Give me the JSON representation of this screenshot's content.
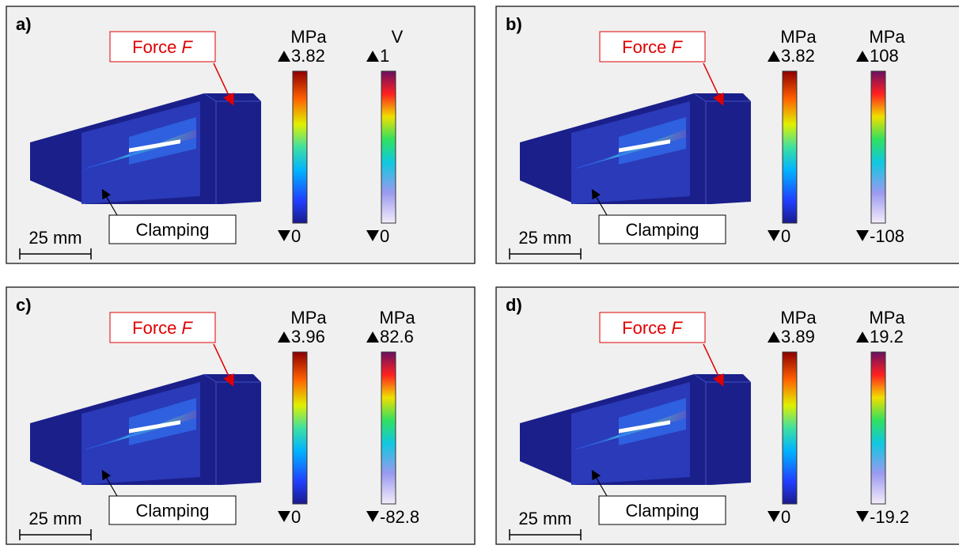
{
  "panels": [
    {
      "label": "a)",
      "force": {
        "text": "Force",
        "symbol": "F"
      },
      "clamping": "Clamping",
      "scale_bar": "25 mm",
      "colorbars": [
        {
          "unit": "MPa",
          "max": "3.82",
          "min": "0"
        },
        {
          "unit": "V",
          "max": "1",
          "min": "0"
        }
      ]
    },
    {
      "label": "b)",
      "force": {
        "text": "Force",
        "symbol": "F"
      },
      "clamping": "Clamping",
      "scale_bar": "25 mm",
      "colorbars": [
        {
          "unit": "MPa",
          "max": "3.82",
          "min": "0"
        },
        {
          "unit": "MPa",
          "max": "108",
          "min": "-108"
        }
      ]
    },
    {
      "label": "c)",
      "force": {
        "text": "Force",
        "symbol": "F"
      },
      "clamping": "Clamping",
      "scale_bar": "25 mm",
      "colorbars": [
        {
          "unit": "MPa",
          "max": "3.96",
          "min": "0"
        },
        {
          "unit": "MPa",
          "max": "82.6",
          "min": "-82.8"
        }
      ]
    },
    {
      "label": "d)",
      "force": {
        "text": "Force",
        "symbol": "F"
      },
      "clamping": "Clamping",
      "scale_bar": "25 mm",
      "colorbars": [
        {
          "unit": "MPa",
          "max": "3.89",
          "min": "0"
        },
        {
          "unit": "MPa",
          "max": "19.2",
          "min": "-19.2"
        }
      ]
    }
  ]
}
